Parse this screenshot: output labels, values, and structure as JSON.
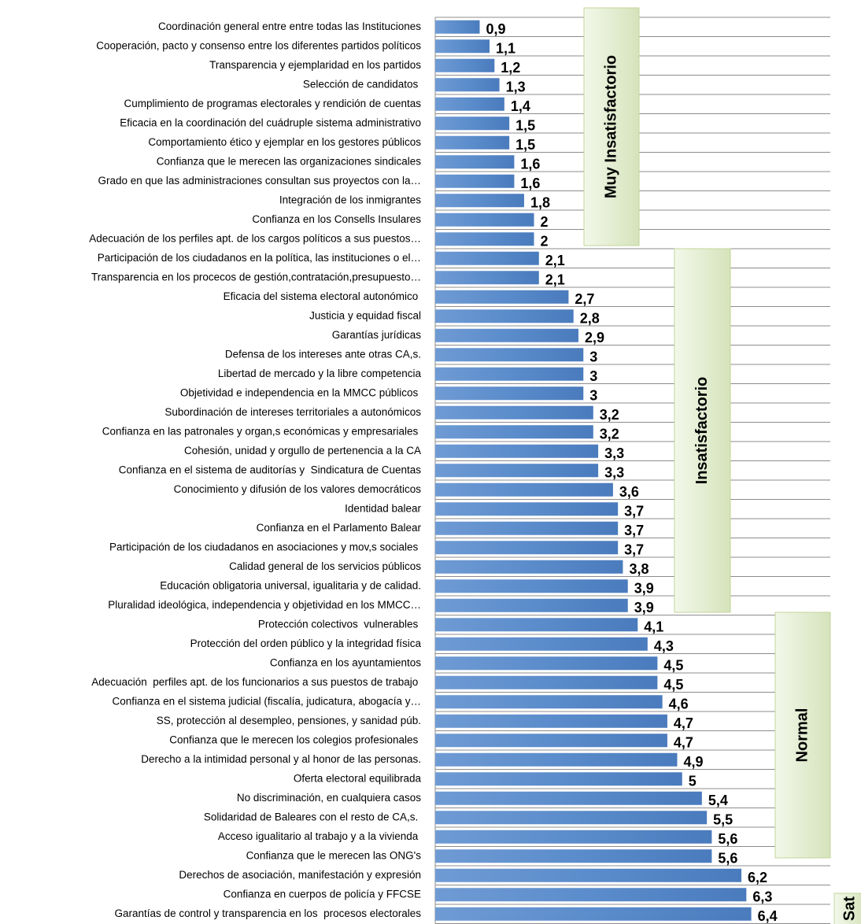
{
  "chart_data": {
    "type": "barh",
    "categories": [
      "Coordinación general entre entre todas las Instituciones",
      "Cooperación, pacto y consenso entre los diferentes partidos políticos",
      "Transparencia y ejemplaridad en los partidos",
      "Selección de candidatos ",
      "Cumplimiento de programas electorales y rendición de cuentas",
      "Eficacia en la coordinación del cuádruple sistema administrativo",
      "Comportamiento ético y ejemplar en los gestores públicos",
      "Confianza que le merecen las organizaciones sindicales",
      "Grado en que las administraciones consultan sus proyectos con la…",
      "Integración de los inmigrantes",
      "Confianza en los Consells Insulares",
      "Adecuación de los perfiles apt. de los cargos políticos a sus puestos…",
      "Participación de los ciudadanos en la política, las instituciones o el…",
      "Transparencia en los procecos de gestión,contratación,presupuesto…",
      "Eficacia del sistema electoral autonómico ",
      "Justicia y equidad fiscal",
      "Garantías jurídicas",
      "Defensa de los intereses ante otras CA,s.",
      "Libertad de mercado y la libre competencia",
      "Objetividad e independencia en la MMCC públicos ",
      "Subordinación de intereses territoriales a autonómicos",
      "Confianza en las patronales y organ,s económicas y empresariales ",
      "Cohesión, unidad y orgullo de pertenencia a la CA",
      "Confianza en el sistema de auditorías y  Sindicatura de Cuentas",
      "Conocimiento y difusión de los valores democráticos",
      "Identidad balear",
      "Confianza en el Parlamento Balear",
      "Participación de los ciudadanos en asociaciones y mov,s sociales ",
      "Calidad general de los servicios públicos",
      "Educación obligatoria universal, igualitaria y de calidad.",
      "Pluralidad ideológica, independencia y objetividad en los MMCC…",
      "Protección colectivos  vulnerables ",
      "Protección del orden público y la integridad física",
      "Confianza en los ayuntamientos",
      "Adecuación  perfiles apt. de los funcionarios a sus puestos de trabajo ",
      "Confianza en el sistema judicial (fiscalía, judicatura, abogacía y…",
      "SS, protección al desempleo, pensiones, y sanidad púb.",
      "Confianza que le merecen los colegios profesionales ",
      "Derecho a la intimidad personal y al honor de las personas.",
      "Oferta electoral equilibrada",
      "No discriminación, en cualquiera casos",
      "Solidaridad de Baleares con el resto de CA,s. ",
      "Acceso igualitario al trabajo y a la vivienda ",
      "Confianza que le merecen las ONG's",
      "Derechos de asociación, manifestación y expresión",
      "Confianza en cuerpos de policía y FFCSE",
      "Garantías de control y transparencia en los  procesos electorales"
    ],
    "values": [
      0.9,
      1.1,
      1.2,
      1.3,
      1.4,
      1.5,
      1.5,
      1.6,
      1.6,
      1.8,
      2,
      2,
      2.1,
      2.1,
      2.7,
      2.8,
      2.9,
      3,
      3,
      3,
      3.2,
      3.2,
      3.3,
      3.3,
      3.6,
      3.7,
      3.7,
      3.7,
      3.8,
      3.9,
      3.9,
      4.1,
      4.3,
      4.5,
      4.5,
      4.6,
      4.7,
      4.7,
      4.9,
      5,
      5.4,
      5.5,
      5.6,
      5.6,
      6.2,
      6.3,
      6.4
    ],
    "value_labels": [
      "0,9",
      "1,1",
      "1,2",
      "1,3",
      "1,4",
      "1,5",
      "1,5",
      "1,6",
      "1,6",
      "1,8",
      "2",
      "2",
      "2,1",
      "2,1",
      "2,7",
      "2,8",
      "2,9",
      "3",
      "3",
      "3",
      "3,2",
      "3,2",
      "3,3",
      "3,3",
      "3,6",
      "3,7",
      "3,7",
      "3,7",
      "3,8",
      "3,9",
      "3,9",
      "4,1",
      "4,3",
      "4,5",
      "4,5",
      "4,6",
      "4,7",
      "4,7",
      "4,9",
      "5",
      "5,4",
      "5,5",
      "5,6",
      "5,6",
      "6,2",
      "6,3",
      "6,4"
    ],
    "color": "#5b8ccb",
    "xlim": [
      0,
      8
    ],
    "grid": true,
    "annotations": [
      "Muy Insatisfactorio",
      "Insatisfactorio",
      "Normal",
      "Sat"
    ]
  }
}
